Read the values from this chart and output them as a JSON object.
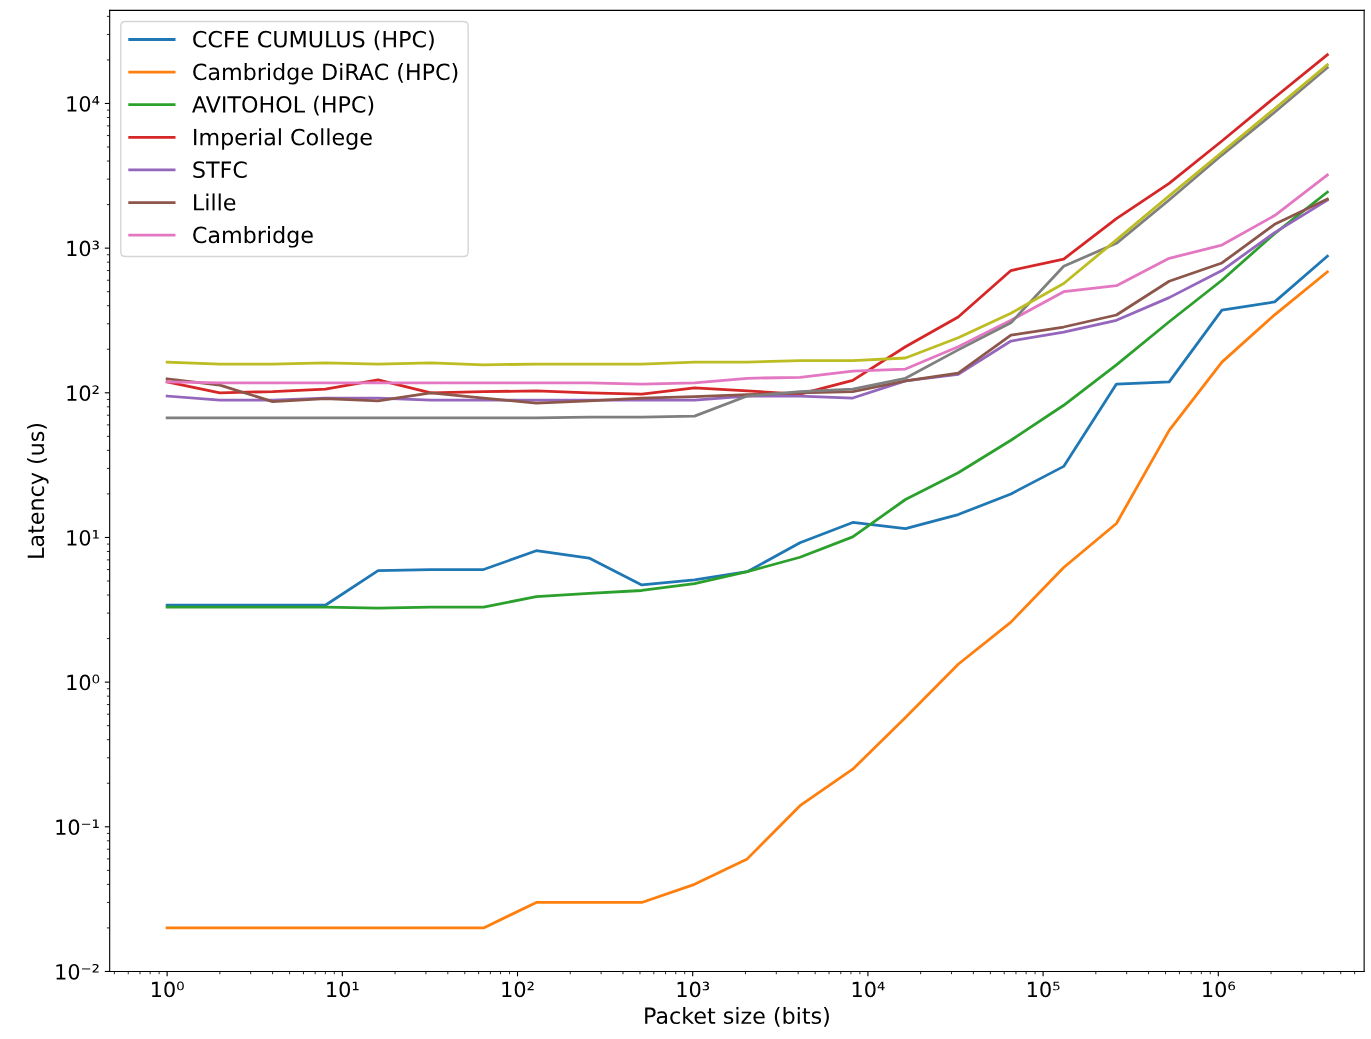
{
  "chart_data": {
    "type": "line",
    "xlabel": "Packet size (bits)",
    "ylabel": "Latency (us)",
    "log": "xy",
    "grid": false,
    "legend": "top left",
    "x": [
      1,
      2,
      4,
      8,
      16,
      32,
      64,
      128,
      256,
      512,
      1024,
      2048,
      4096,
      8192,
      16384,
      32768,
      65536,
      131072,
      262144,
      524288,
      1048576,
      2097152,
      4194304
    ],
    "xlim": [
      0.47,
      6800000
    ],
    "ylim": [
      0.01,
      44000
    ],
    "xticks": [
      {
        "value": 1,
        "label": "10⁰"
      },
      {
        "value": 10,
        "label": "10¹"
      },
      {
        "value": 100,
        "label": "10²"
      },
      {
        "value": 1000,
        "label": "10³"
      },
      {
        "value": 10000,
        "label": "10⁴"
      },
      {
        "value": 100000,
        "label": "10⁵"
      },
      {
        "value": 1000000,
        "label": "10⁶"
      }
    ],
    "yticks": [
      {
        "value": 0.01,
        "label": "10⁻²"
      },
      {
        "value": 0.1,
        "label": "10⁻¹"
      },
      {
        "value": 1,
        "label": "10⁰"
      },
      {
        "value": 10,
        "label": "10¹"
      },
      {
        "value": 100,
        "label": "10²"
      },
      {
        "value": 1000,
        "label": "10³"
      },
      {
        "value": 10000,
        "label": "10⁴"
      }
    ],
    "series": [
      {
        "name": "CCFE CUMULUS (HPC)",
        "color": "#1f77b4",
        "values": [
          3.4,
          3.4,
          3.4,
          3.4,
          5.9,
          6.0,
          6.0,
          8.1,
          7.2,
          4.7,
          5.1,
          5.8,
          9.2,
          12.7,
          11.5,
          14.4,
          20,
          31,
          115,
          119,
          373,
          425,
          880
        ]
      },
      {
        "name": "Cambridge DiRAC (HPC)",
        "color": "#ff7f0e",
        "values": [
          0.02,
          0.02,
          0.02,
          0.02,
          0.02,
          0.02,
          0.02,
          0.03,
          0.03,
          0.03,
          0.04,
          0.06,
          0.14,
          0.25,
          0.57,
          1.33,
          2.6,
          6.2,
          12.5,
          55,
          163,
          346,
          685
        ]
      },
      {
        "name": "AVITOHOL (HPC)",
        "color": "#2ca02c",
        "values": [
          3.3,
          3.3,
          3.3,
          3.3,
          3.25,
          3.3,
          3.3,
          3.9,
          4.1,
          4.3,
          4.8,
          5.8,
          7.3,
          10.1,
          18.3,
          28,
          47,
          82,
          156,
          310,
          600,
          1260,
          2440
        ]
      },
      {
        "name": "Imperial College",
        "color": "#d62728",
        "values": [
          119,
          100,
          102,
          106,
          123,
          100,
          102,
          103,
          100,
          98,
          108,
          103,
          98,
          122,
          208,
          334,
          700,
          840,
          1600,
          2800,
          5500,
          11000,
          21700
        ]
      },
      {
        "name": "STFC",
        "color": "#9467bd",
        "values": [
          95,
          89,
          89,
          92,
          92,
          89,
          89,
          89,
          89,
          89,
          89,
          95,
          95,
          92,
          121,
          134,
          228,
          263,
          317,
          455,
          700,
          1280,
          2150
        ]
      },
      {
        "name": "Lille",
        "color": "#8c564b",
        "values": [
          125,
          113,
          87,
          91,
          88,
          100,
          92,
          85,
          88,
          92,
          94,
          97,
          100,
          102,
          121,
          137,
          250,
          285,
          345,
          590,
          790,
          1460,
          2180
        ]
      },
      {
        "name": "Cambridge",
        "color": "#e377c2",
        "values": [
          119,
          117,
          117,
          117,
          117,
          117,
          117,
          117,
          117,
          115,
          117,
          126,
          128,
          141,
          146,
          208,
          317,
          500,
          550,
          850,
          1050,
          1680,
          3200
        ]
      },
      {
        "color": "#7f7f7f",
        "values": [
          67,
          67,
          67,
          67,
          67,
          67,
          67,
          67,
          68,
          68,
          69,
          95,
          102,
          106,
          126,
          198,
          305,
          750,
          1080,
          2150,
          4400,
          8700,
          17700
        ]
      },
      {
        "color": "#bcbd22",
        "values": [
          163,
          158,
          158,
          161,
          158,
          161,
          156,
          158,
          158,
          158,
          163,
          163,
          167,
          167,
          174,
          240,
          355,
          570,
          1140,
          2300,
          4600,
          9200,
          18500
        ]
      }
    ]
  }
}
